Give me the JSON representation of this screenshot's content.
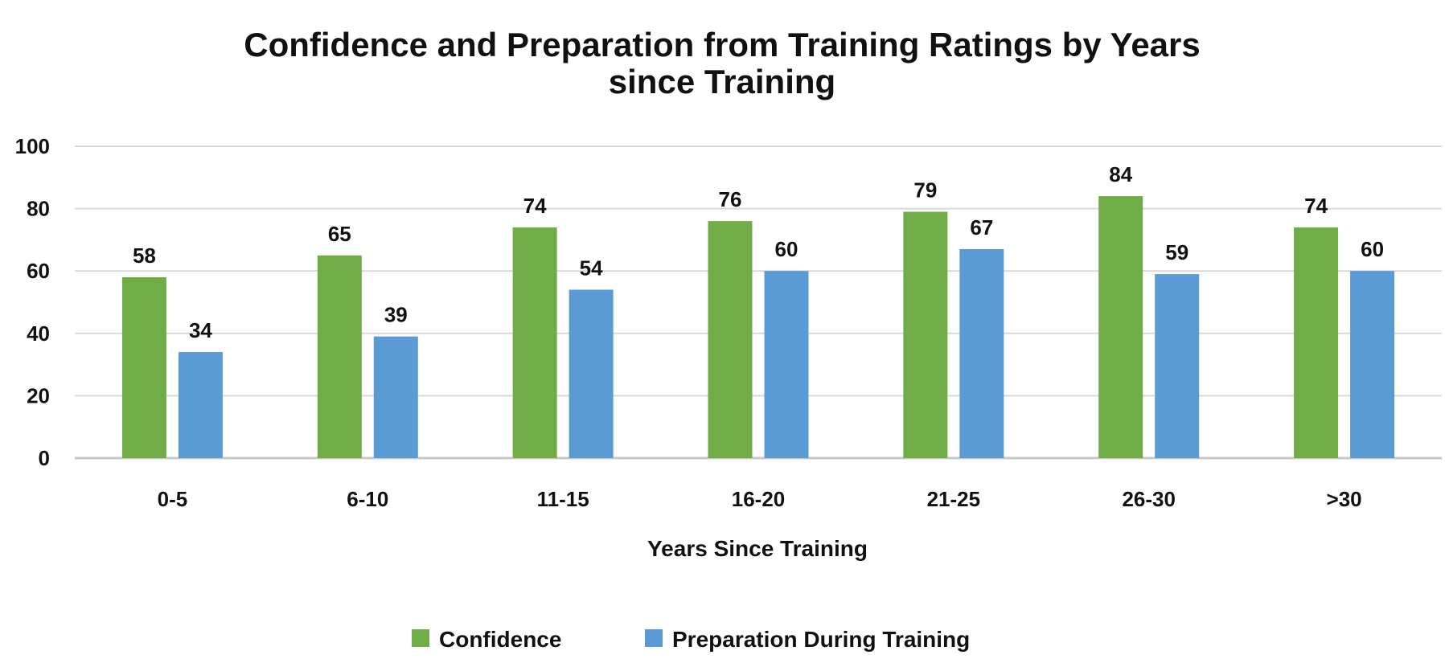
{
  "chart_data": {
    "type": "bar",
    "title": "Confidence and Preparation from Training Ratings by Years since Training",
    "title_lines": [
      "Confidence and Preparation from Training Ratings by Years",
      "since Training"
    ],
    "xlabel": "Years Since Training",
    "ylabel": "",
    "ylim": [
      0,
      100
    ],
    "yticks": [
      0,
      20,
      40,
      60,
      80,
      100
    ],
    "grid": true,
    "legend_position": "bottom",
    "categories": [
      "0-5",
      "6-10",
      "11-15",
      "16-20",
      "21-25",
      "26-30",
      ">30"
    ],
    "series": [
      {
        "name": "Confidence",
        "color": "#70ad47",
        "values": [
          58,
          65,
          74,
          76,
          79,
          84,
          74
        ]
      },
      {
        "name": "Preparation During Training",
        "color": "#5b9bd5",
        "values": [
          34,
          39,
          54,
          60,
          67,
          59,
          60
        ]
      }
    ]
  }
}
